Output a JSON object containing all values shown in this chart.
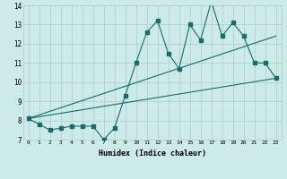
{
  "title": "",
  "xlabel": "Humidex (Indice chaleur)",
  "ylabel": "",
  "background_color": "#cceae8",
  "plot_bg_color": "#cceae8",
  "bottom_bar_color": "#5a8a85",
  "grid_color": "#b0cccc",
  "line_color": "#1a6b6b",
  "xlim": [
    -0.5,
    23.5
  ],
  "ylim": [
    7,
    14
  ],
  "xtick_vals": [
    0,
    1,
    2,
    3,
    4,
    5,
    6,
    7,
    8,
    9,
    10,
    11,
    12,
    13,
    14,
    15,
    16,
    17,
    18,
    19,
    20,
    21,
    22,
    23
  ],
  "xtick_labels": [
    "0",
    "1",
    "2",
    "3",
    "4",
    "5",
    "6",
    "7",
    "8",
    "9",
    "10",
    "11",
    "12",
    "13",
    "14",
    "15",
    "16",
    "17",
    "18",
    "19",
    "20",
    "21",
    "22",
    "23"
  ],
  "ytick_vals": [
    7,
    8,
    9,
    10,
    11,
    12,
    13,
    14
  ],
  "ytick_labels": [
    "7",
    "8",
    "9",
    "10",
    "11",
    "12",
    "13",
    "14"
  ],
  "series1_x": [
    0,
    1,
    2,
    3,
    4,
    5,
    6,
    7,
    8,
    9,
    10,
    11,
    12,
    13,
    14,
    15,
    16,
    17,
    18,
    19,
    20,
    21,
    22,
    23
  ],
  "series1_y": [
    8.1,
    7.8,
    7.5,
    7.6,
    7.7,
    7.7,
    7.7,
    7.0,
    7.6,
    9.3,
    11.0,
    12.6,
    13.2,
    11.5,
    10.7,
    13.0,
    12.2,
    14.2,
    12.4,
    13.1,
    12.4,
    11.0,
    11.0,
    10.2
  ],
  "series2_x": [
    0,
    23
  ],
  "series2_y": [
    8.1,
    10.2
  ],
  "series3_x": [
    0,
    23
  ],
  "series3_y": [
    8.1,
    12.4
  ]
}
